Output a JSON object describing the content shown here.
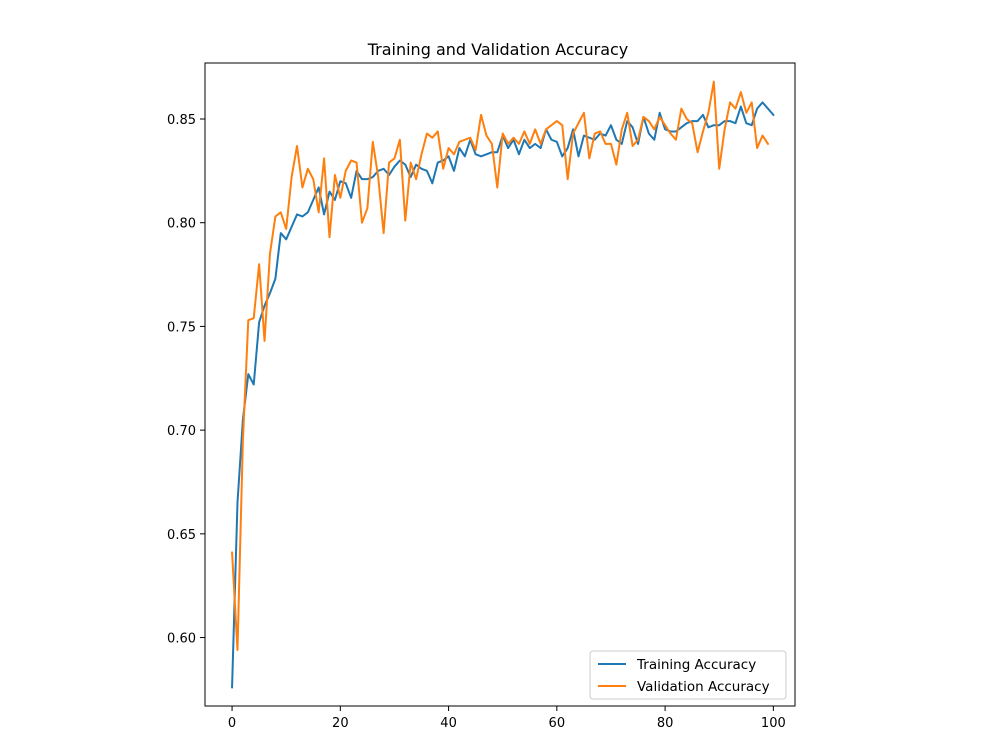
{
  "chart_data": {
    "type": "line",
    "title": "Training and Validation Accuracy",
    "xlabel": "",
    "ylabel": "",
    "xlim": [
      -5,
      104
    ],
    "ylim": [
      0.567,
      0.877
    ],
    "x_ticks": [
      0,
      20,
      40,
      60,
      80,
      100
    ],
    "x_tick_labels": [
      "0",
      "20",
      "40",
      "60",
      "80",
      "100"
    ],
    "y_ticks": [
      0.6,
      0.65,
      0.7,
      0.75,
      0.8,
      0.85
    ],
    "y_tick_labels": [
      "0.60",
      "0.65",
      "0.70",
      "0.75",
      "0.80",
      "0.85"
    ],
    "grid": false,
    "legend_position": "lower-right",
    "series": [
      {
        "name": "Training Accuracy",
        "color": "#1f77b4",
        "values": [
          0.576,
          0.665,
          0.705,
          0.727,
          0.722,
          0.752,
          0.76,
          0.766,
          0.773,
          0.795,
          0.792,
          0.798,
          0.804,
          0.803,
          0.805,
          0.811,
          0.817,
          0.804,
          0.815,
          0.811,
          0.82,
          0.819,
          0.812,
          0.825,
          0.821,
          0.821,
          0.822,
          0.825,
          0.826,
          0.823,
          0.827,
          0.83,
          0.828,
          0.822,
          0.828,
          0.826,
          0.825,
          0.819,
          0.829,
          0.83,
          0.832,
          0.825,
          0.836,
          0.832,
          0.84,
          0.833,
          0.832,
          0.833,
          0.834,
          0.834,
          0.842,
          0.836,
          0.84,
          0.833,
          0.84,
          0.836,
          0.838,
          0.836,
          0.845,
          0.84,
          0.839,
          0.832,
          0.836,
          0.845,
          0.832,
          0.842,
          0.841,
          0.84,
          0.843,
          0.842,
          0.847,
          0.84,
          0.838,
          0.849,
          0.846,
          0.838,
          0.851,
          0.843,
          0.84,
          0.853,
          0.845,
          0.844,
          0.844,
          0.846,
          0.848,
          0.849,
          0.849,
          0.852,
          0.846,
          0.847,
          0.847,
          0.849,
          0.849,
          0.848,
          0.856,
          0.848,
          0.847,
          0.855,
          0.858,
          0.855,
          0.852
        ]
      },
      {
        "name": "Validation Accuracy",
        "color": "#ff7f0e",
        "values": [
          0.641,
          0.594,
          0.695,
          0.753,
          0.754,
          0.78,
          0.743,
          0.785,
          0.803,
          0.805,
          0.797,
          0.822,
          0.837,
          0.817,
          0.826,
          0.821,
          0.805,
          0.831,
          0.793,
          0.823,
          0.812,
          0.825,
          0.83,
          0.829,
          0.8,
          0.807,
          0.839,
          0.822,
          0.795,
          0.829,
          0.831,
          0.84,
          0.801,
          0.829,
          0.821,
          0.833,
          0.843,
          0.841,
          0.844,
          0.826,
          0.836,
          0.833,
          0.839,
          0.84,
          0.841,
          0.835,
          0.852,
          0.842,
          0.838,
          0.817,
          0.843,
          0.838,
          0.841,
          0.838,
          0.844,
          0.838,
          0.845,
          0.838,
          0.845,
          0.847,
          0.849,
          0.847,
          0.821,
          0.843,
          0.848,
          0.853,
          0.831,
          0.843,
          0.844,
          0.838,
          0.838,
          0.828,
          0.845,
          0.853,
          0.837,
          0.84,
          0.851,
          0.849,
          0.845,
          0.851,
          0.847,
          0.843,
          0.84,
          0.855,
          0.85,
          0.848,
          0.834,
          0.844,
          0.853,
          0.868,
          0.826,
          0.845,
          0.858,
          0.855,
          0.863,
          0.853,
          0.858,
          0.836,
          0.842,
          0.838
        ]
      }
    ]
  }
}
